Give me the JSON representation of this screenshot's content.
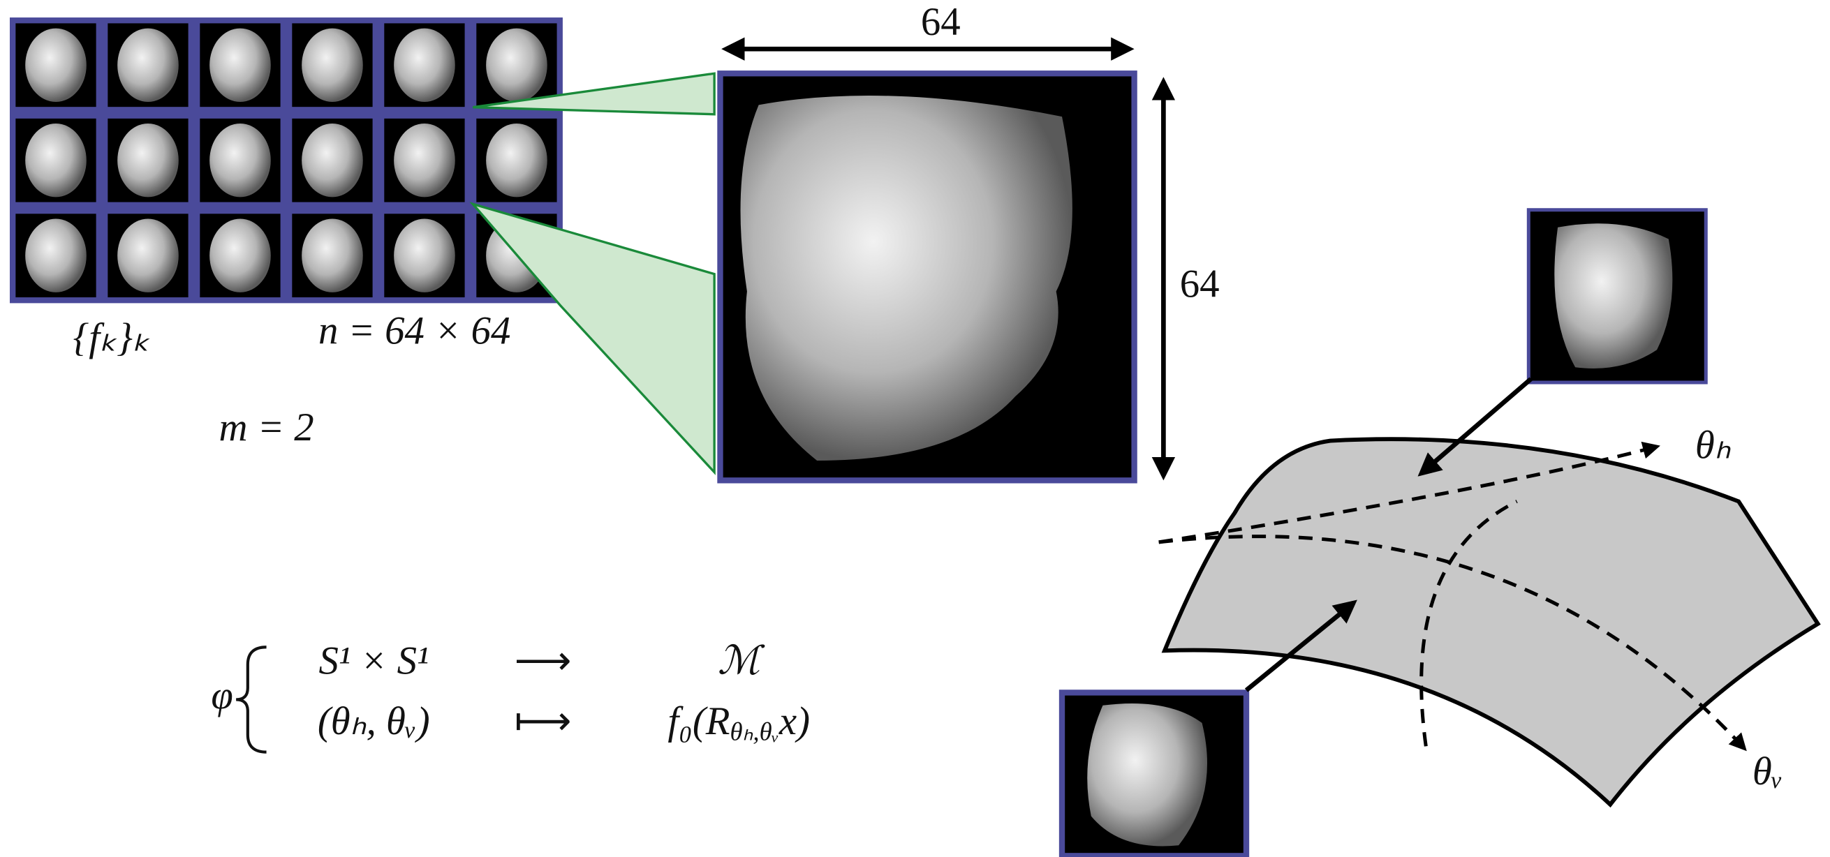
{
  "dimensions": {
    "width": "64",
    "height": "64"
  },
  "labels": {
    "samples": "{fₖ}ₖ",
    "n": "n = 64 × 64",
    "m": "m = 2",
    "theta_h": "θₕ",
    "theta_v": "θᵥ"
  },
  "map": {
    "name": "φ",
    "row1": {
      "domain": "S¹ × S¹",
      "arrow": "⟶",
      "codomain": "ℳ"
    },
    "row2": {
      "domain": "(θₕ, θᵥ)",
      "arrow": "⟼",
      "image_start": "f₀(R",
      "image_sub": "θₕ,θᵥ",
      "image_end": "x)"
    }
  }
}
